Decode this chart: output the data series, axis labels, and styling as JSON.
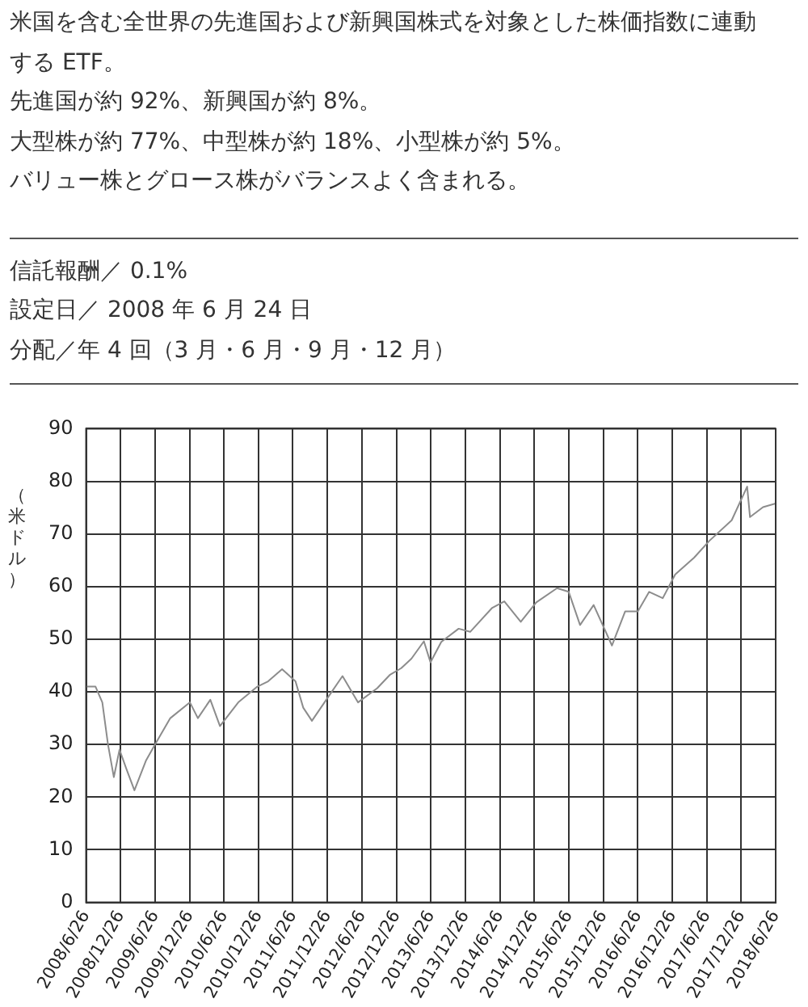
{
  "chart_data": {
    "type": "line",
    "annotations": [
      "米国を含む全世界の先進国および新興国株式を対象とした株価指数に連動する ETF。",
      "先進国が約 92%、新興国が約 8%。",
      "大型株が約 77%、中型株が約 18%、小型株が約 5%。",
      "バリュー株とグロース株がバランスよく含まれる。",
      "信託報酬／ 0.1%",
      "設定日／ 2008 年 6 月 24 日",
      "分配／年 4 回（3 月・6 月・9 月・12 月）"
    ],
    "ylabel": "（米ドル）",
    "x": [
      "2008-06-26",
      "2008-08-15",
      "2008-09-20",
      "2008-10-20",
      "2008-11-20",
      "2008-12-20",
      "2009-01-25",
      "2009-03-09",
      "2009-05-10",
      "2009-06-26",
      "2009-09-15",
      "2009-12-28",
      "2010-02-08",
      "2010-04-15",
      "2010-06-05",
      "2010-09-10",
      "2010-12-20",
      "2011-02-15",
      "2011-04-30",
      "2011-07-10",
      "2011-08-20",
      "2011-10-05",
      "2011-12-20",
      "2012-03-15",
      "2012-06-05",
      "2012-09-15",
      "2012-11-20",
      "2013-01-20",
      "2013-03-15",
      "2013-05-20",
      "2013-06-24",
      "2013-08-20",
      "2013-11-20",
      "2014-01-20",
      "2014-05-15",
      "2014-07-20",
      "2014-10-15",
      "2015-01-05",
      "2015-04-25",
      "2015-06-26",
      "2015-08-25",
      "2015-11-05",
      "2016-02-10",
      "2016-04-20",
      "2016-06-26",
      "2016-08-25",
      "2016-11-05",
      "2017-01-10",
      "2017-04-20",
      "2017-07-10",
      "2017-11-05",
      "2018-01-26",
      "2018-02-10",
      "2018-04-20",
      "2018-06-26"
    ],
    "series": [
      {
        "color": "#8c8c8c",
        "values": [
          41,
          41,
          38,
          30,
          23.8,
          29,
          25.4,
          21.3,
          27,
          30,
          35,
          38,
          35,
          38.5,
          33.5,
          38,
          41,
          42,
          44.3,
          42,
          37,
          34.5,
          38.5,
          43,
          38,
          40.7,
          43.2,
          44.5,
          46.3,
          49.6,
          45.6,
          49.5,
          52,
          51.4,
          55.9,
          57.2,
          53.3,
          57,
          59.7,
          59,
          52.7,
          56.5,
          48.8,
          55.3,
          55.3,
          59,
          57.8,
          62.3,
          65.5,
          68.7,
          72.6,
          79,
          73.2,
          75.1,
          75.8
        ]
      }
    ],
    "xlim": [
      "2008-06-26",
      "2018-06-26"
    ],
    "xticks": [
      {
        "value": "2008-06-26",
        "label": "2008/6/26"
      },
      {
        "value": "2008-12-26",
        "label": "2008/12/26"
      },
      {
        "value": "2009-06-26",
        "label": "2009/6/26"
      },
      {
        "value": "2009-12-26",
        "label": "2009/12/26"
      },
      {
        "value": "2010-06-26",
        "label": "2010/6/26"
      },
      {
        "value": "2010-12-26",
        "label": "2010/12/26"
      },
      {
        "value": "2011-06-26",
        "label": "2011/6/26"
      },
      {
        "value": "2011-12-26",
        "label": "2011/12/26"
      },
      {
        "value": "2012-06-26",
        "label": "2012/6/26"
      },
      {
        "value": "2012-12-26",
        "label": "2012/12/26"
      },
      {
        "value": "2013-06-26",
        "label": "2013/6/26"
      },
      {
        "value": "2013-12-26",
        "label": "2013/12/26"
      },
      {
        "value": "2014-06-26",
        "label": "2014/6/26"
      },
      {
        "value": "2014-12-26",
        "label": "2014/12/26"
      },
      {
        "value": "2015-06-26",
        "label": "2015/6/26"
      },
      {
        "value": "2015-12-26",
        "label": "2015/12/26"
      },
      {
        "value": "2016-06-26",
        "label": "2016/6/26"
      },
      {
        "value": "2016-12-26",
        "label": "2016/12/26"
      },
      {
        "value": "2017-06-26",
        "label": "2017/6/26"
      },
      {
        "value": "2017-12-26",
        "label": "2017/12/26"
      },
      {
        "value": "2018-06-26",
        "label": "2018/6/26"
      }
    ],
    "ylim": [
      0,
      90
    ],
    "yticks": [
      0,
      10,
      20,
      30,
      40,
      50,
      60,
      70,
      80,
      90
    ],
    "grid": true,
    "legend": false,
    "marker": "none",
    "line_style": "solid"
  }
}
